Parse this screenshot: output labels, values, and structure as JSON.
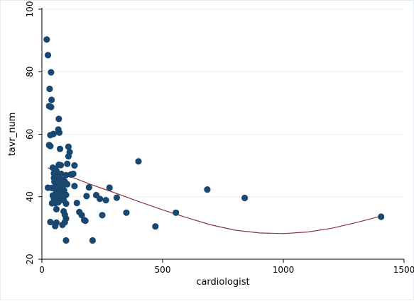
{
  "chart_data": {
    "type": "scatter",
    "title": "",
    "xlabel": "cardiologist",
    "ylabel": "tavr_num",
    "xlim": [
      0,
      1500
    ],
    "ylim": [
      20,
      100
    ],
    "x_ticks": [
      0,
      500,
      1000,
      1500
    ],
    "y_ticks": [
      20,
      40,
      60,
      80,
      100
    ],
    "grid": "horizontal",
    "legend": "none",
    "colors": {
      "points": "#1a476f",
      "fit_line": "#90353b",
      "grid": "#eaf2f3",
      "axis": "#000000"
    },
    "series": [
      {
        "kind": "points",
        "points": [
          {
            "x": 20,
            "y": 90.3
          },
          {
            "x": 25,
            "y": 85.3
          },
          {
            "x": 38,
            "y": 79.8
          },
          {
            "x": 32,
            "y": 74.5
          },
          {
            "x": 40,
            "y": 71.0
          },
          {
            "x": 30,
            "y": 69.0
          },
          {
            "x": 38,
            "y": 68.7
          },
          {
            "x": 70,
            "y": 64.9
          },
          {
            "x": 68,
            "y": 61.5
          },
          {
            "x": 72,
            "y": 60.5
          },
          {
            "x": 35,
            "y": 59.7
          },
          {
            "x": 48,
            "y": 60.1
          },
          {
            "x": 30,
            "y": 56.5
          },
          {
            "x": 35,
            "y": 56.2
          },
          {
            "x": 110,
            "y": 56.0
          },
          {
            "x": 75,
            "y": 55.3
          },
          {
            "x": 115,
            "y": 54.3
          },
          {
            "x": 110,
            "y": 52.9
          },
          {
            "x": 400,
            "y": 51.3
          },
          {
            "x": 70,
            "y": 50.2
          },
          {
            "x": 78,
            "y": 50.1
          },
          {
            "x": 105,
            "y": 50.5
          },
          {
            "x": 135,
            "y": 50.0
          },
          {
            "x": 45,
            "y": 49.3
          },
          {
            "x": 55,
            "y": 48.9
          },
          {
            "x": 60,
            "y": 48.3
          },
          {
            "x": 50,
            "y": 47.5
          },
          {
            "x": 62,
            "y": 47.0
          },
          {
            "x": 80,
            "y": 47.3
          },
          {
            "x": 100,
            "y": 46.9
          },
          {
            "x": 120,
            "y": 47.1
          },
          {
            "x": 130,
            "y": 47.3
          },
          {
            "x": 50,
            "y": 46.0
          },
          {
            "x": 65,
            "y": 46.2
          },
          {
            "x": 72,
            "y": 45.8
          },
          {
            "x": 88,
            "y": 45.3
          },
          {
            "x": 52,
            "y": 44.8
          },
          {
            "x": 78,
            "y": 44.5
          },
          {
            "x": 95,
            "y": 44.8
          },
          {
            "x": 60,
            "y": 44.0
          },
          {
            "x": 70,
            "y": 43.8
          },
          {
            "x": 105,
            "y": 44.0
          },
          {
            "x": 25,
            "y": 42.9
          },
          {
            "x": 40,
            "y": 42.8
          },
          {
            "x": 55,
            "y": 43.2
          },
          {
            "x": 65,
            "y": 43.0
          },
          {
            "x": 85,
            "y": 43.1
          },
          {
            "x": 135,
            "y": 43.4
          },
          {
            "x": 195,
            "y": 43.0
          },
          {
            "x": 280,
            "y": 42.9
          },
          {
            "x": 685,
            "y": 42.3
          },
          {
            "x": 58,
            "y": 42.0
          },
          {
            "x": 68,
            "y": 41.8
          },
          {
            "x": 80,
            "y": 42.2
          },
          {
            "x": 92,
            "y": 42.0
          },
          {
            "x": 62,
            "y": 41.2
          },
          {
            "x": 75,
            "y": 41.0
          },
          {
            "x": 88,
            "y": 40.9
          },
          {
            "x": 45,
            "y": 40.4
          },
          {
            "x": 58,
            "y": 40.3
          },
          {
            "x": 72,
            "y": 40.5
          },
          {
            "x": 85,
            "y": 40.2
          },
          {
            "x": 100,
            "y": 40.6
          },
          {
            "x": 185,
            "y": 40.2
          },
          {
            "x": 225,
            "y": 40.5
          },
          {
            "x": 310,
            "y": 39.7
          },
          {
            "x": 840,
            "y": 39.6
          },
          {
            "x": 50,
            "y": 39.4
          },
          {
            "x": 62,
            "y": 39.2
          },
          {
            "x": 78,
            "y": 39.0
          },
          {
            "x": 90,
            "y": 38.9
          },
          {
            "x": 240,
            "y": 39.3
          },
          {
            "x": 265,
            "y": 38.9
          },
          {
            "x": 42,
            "y": 37.9
          },
          {
            "x": 55,
            "y": 38.0
          },
          {
            "x": 68,
            "y": 38.2
          },
          {
            "x": 100,
            "y": 37.8
          },
          {
            "x": 145,
            "y": 38.0
          },
          {
            "x": 60,
            "y": 36.0
          },
          {
            "x": 155,
            "y": 35.1
          },
          {
            "x": 90,
            "y": 35.3
          },
          {
            "x": 350,
            "y": 34.9
          },
          {
            "x": 555,
            "y": 34.9
          },
          {
            "x": 95,
            "y": 34.2
          },
          {
            "x": 165,
            "y": 34.1
          },
          {
            "x": 250,
            "y": 34.1
          },
          {
            "x": 1405,
            "y": 33.6
          },
          {
            "x": 100,
            "y": 33.0
          },
          {
            "x": 175,
            "y": 32.5
          },
          {
            "x": 180,
            "y": 32.3
          },
          {
            "x": 35,
            "y": 31.9
          },
          {
            "x": 60,
            "y": 31.7
          },
          {
            "x": 95,
            "y": 31.8
          },
          {
            "x": 55,
            "y": 30.6
          },
          {
            "x": 85,
            "y": 31.0
          },
          {
            "x": 470,
            "y": 30.5
          },
          {
            "x": 100,
            "y": 26.0
          },
          {
            "x": 210,
            "y": 26.0
          }
        ]
      },
      {
        "kind": "line",
        "x": [
          25,
          100,
          200,
          300,
          400,
          500,
          600,
          700,
          800,
          900,
          1000,
          1100,
          1200,
          1300,
          1405
        ],
        "y": [
          49.2,
          47.0,
          44.0,
          41.3,
          38.5,
          35.8,
          33.3,
          31.0,
          29.3,
          28.4,
          28.2,
          28.7,
          29.9,
          31.7,
          33.8
        ]
      }
    ]
  }
}
